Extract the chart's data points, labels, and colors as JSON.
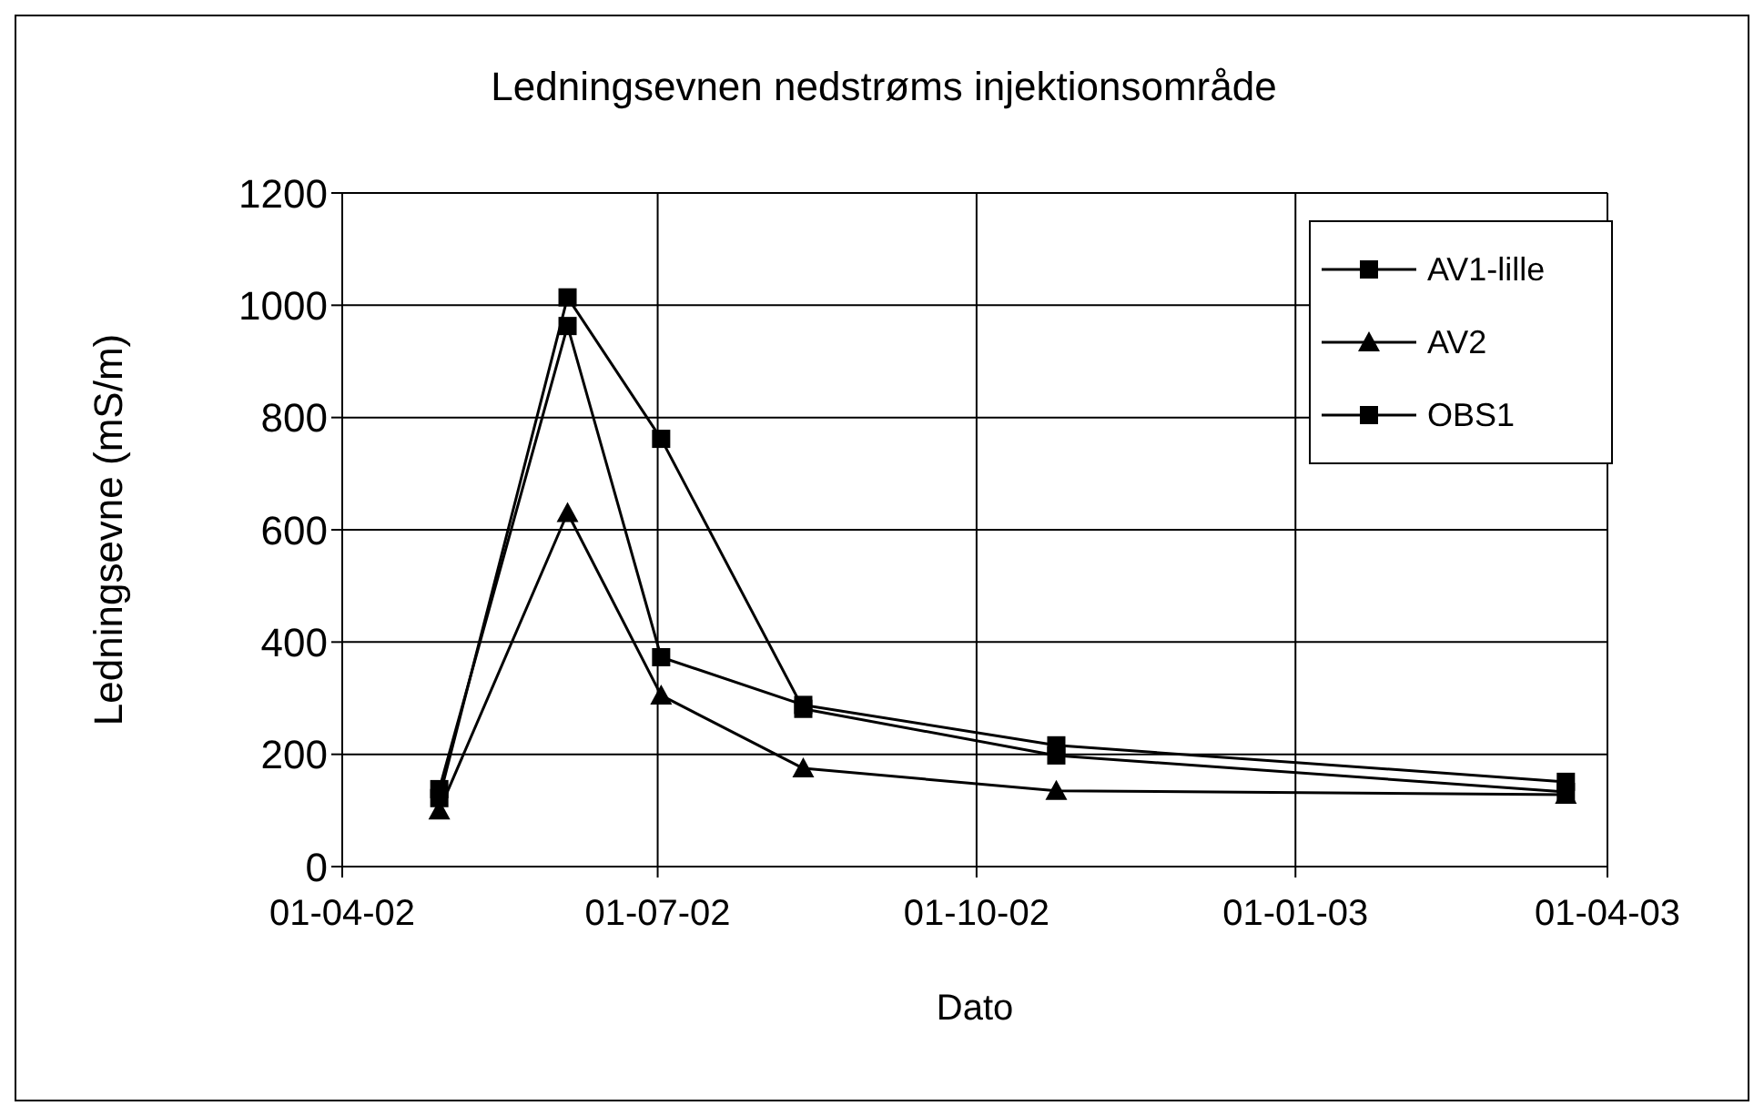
{
  "chart_data": {
    "type": "line",
    "title": "Ledningsevnen nedstrøms injektionsområde",
    "xlabel": "Dato",
    "ylabel": "Ledningsevne (mS/m)",
    "x": [
      "2002-04-29",
      "2002-06-05",
      "2002-07-02",
      "2002-08-12",
      "2002-10-24",
      "2003-03-20"
    ],
    "series": [
      {
        "name": "AV1-lille",
        "color": "#000000",
        "marker": "square",
        "values": [
          122,
          1014,
          762,
          281,
          198,
          133
        ]
      },
      {
        "name": "AV2",
        "color": "#000000",
        "marker": "triangle",
        "values": [
          100,
          630,
          305,
          175,
          135,
          128
        ]
      },
      {
        "name": "OBS1",
        "color": "#000000",
        "marker": "square",
        "values": [
          138,
          963,
          373,
          288,
          216,
          151
        ]
      }
    ],
    "xlim": [
      "2002-04-01",
      "2003-04-01"
    ],
    "xticks": [
      {
        "value": "2002-04-01",
        "label": "01-04-02"
      },
      {
        "value": "2002-07-01",
        "label": "01-07-02"
      },
      {
        "value": "2002-10-01",
        "label": "01-10-02"
      },
      {
        "value": "2003-01-01",
        "label": "01-01-03"
      },
      {
        "value": "2003-04-01",
        "label": "01-04-03"
      }
    ],
    "ylim": [
      0,
      1200
    ],
    "yticks": [
      0,
      200,
      400,
      600,
      800,
      1000,
      1200
    ],
    "grid": true,
    "legend": "top right",
    "line_style": "solid"
  }
}
